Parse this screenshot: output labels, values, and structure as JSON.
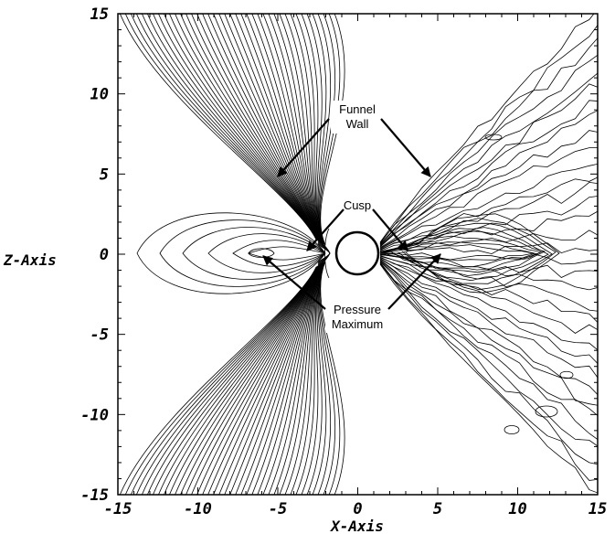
{
  "figure": {
    "x_axis_title": "X-Axis",
    "z_axis_title": "Z-Axis",
    "x_ticks": [
      "-15",
      "-10",
      "-5",
      "0",
      "5",
      "10",
      "15"
    ],
    "z_ticks": [
      "15",
      "10",
      "5",
      "0",
      "-5",
      "-10",
      "-15"
    ],
    "x_range": [
      -15,
      15
    ],
    "z_range": [
      -15,
      15
    ],
    "annotations": {
      "funnel_wall": [
        "Funnel",
        "Wall"
      ],
      "cusp": "Cusp",
      "pressure_maximum": [
        "Pressure",
        "Maximum"
      ]
    },
    "colors": {
      "lines": "#000000",
      "background": "#ffffff"
    }
  }
}
